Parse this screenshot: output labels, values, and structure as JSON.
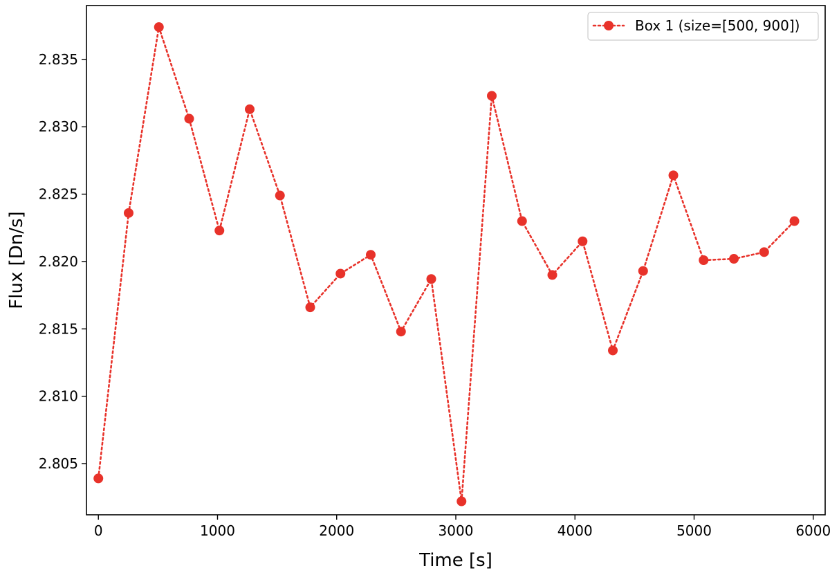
{
  "chart_data": {
    "type": "line",
    "title": "",
    "xlabel": "Time [s]",
    "ylabel": "Flux [Dn/s]",
    "xlim": [
      -100,
      6100
    ],
    "ylim": [
      2.8012,
      2.839
    ],
    "xticks": [
      0,
      1000,
      2000,
      3000,
      4000,
      5000,
      6000
    ],
    "yticks": [
      2.805,
      2.81,
      2.815,
      2.82,
      2.825,
      2.83,
      2.835
    ],
    "ytick_labels": [
      "2.805",
      "2.810",
      "2.815",
      "2.820",
      "2.825",
      "2.830",
      "2.835"
    ],
    "grid": false,
    "legend_position": "top-right",
    "series": [
      {
        "name": "Box 1 (size=[500, 900])",
        "color": "#e8322a",
        "line_style": "dotted",
        "marker": "circle",
        "x": [
          0,
          254,
          508,
          762,
          1016,
          1270,
          1524,
          1778,
          2032,
          2286,
          2540,
          2794,
          3048,
          3302,
          3556,
          3810,
          4064,
          4318,
          4572,
          4826,
          5080,
          5334,
          5588,
          5842
        ],
        "y": [
          2.8039,
          2.8236,
          2.8374,
          2.8306,
          2.8223,
          2.8313,
          2.8249,
          2.8166,
          2.8191,
          2.8205,
          2.8148,
          2.8187,
          2.8022,
          2.8323,
          2.823,
          2.819,
          2.8215,
          2.8134,
          2.8193,
          2.8264,
          2.8201,
          2.8202,
          2.8207,
          2.823
        ]
      }
    ]
  }
}
